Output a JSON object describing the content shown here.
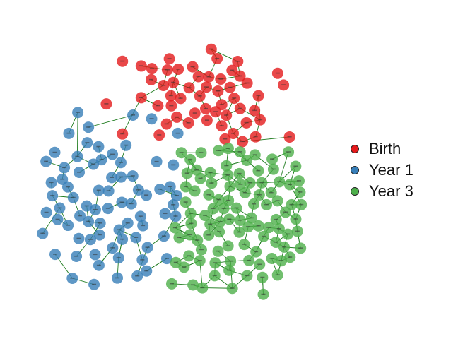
{
  "legend": {
    "items": [
      {
        "label": "Birth",
        "color": "#E41A1C"
      },
      {
        "label": "Year 1",
        "color": "#377EB8"
      },
      {
        "label": "Year 3",
        "color": "#4DAF4A"
      }
    ]
  },
  "graph": {
    "edge_color": "#1E7B1E",
    "node_fill_opacity": 0.8,
    "node_count_by_group": {
      "Birth": 55,
      "Year 1": 75,
      "Year 3": 100
    },
    "layout_seed": 7
  }
}
